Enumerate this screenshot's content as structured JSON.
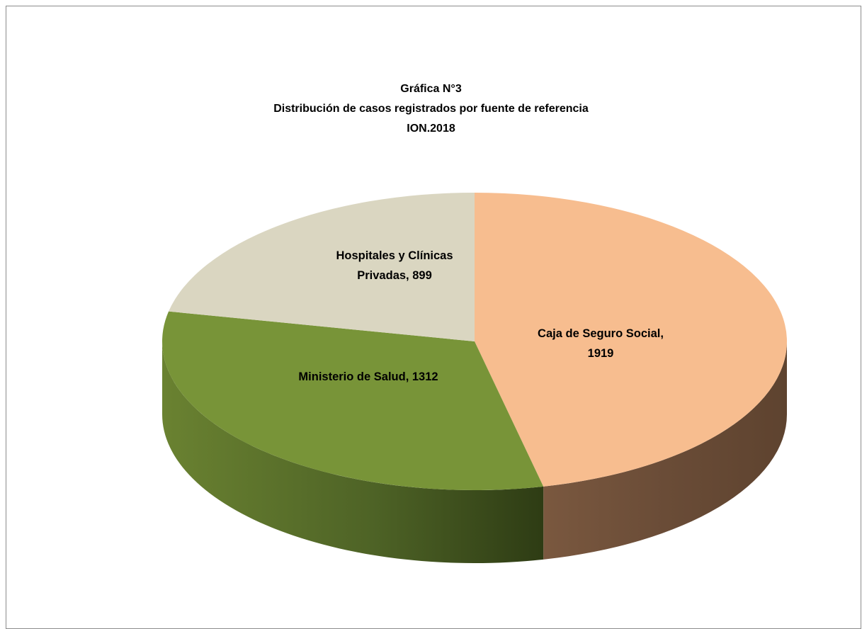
{
  "chart_data": {
    "type": "pie",
    "title_lines": [
      "Gráfica N°3",
      "Distribución de casos registrados por fuente de referencia",
      "ION.2018"
    ],
    "slices": [
      {
        "label": "Caja de Seguro Social",
        "value": 1919,
        "color": "#f7bd8f",
        "side_color": "#6b4c37",
        "label_lines": [
          "Caja de Seguro Social,",
          "1919"
        ]
      },
      {
        "label": "Ministerio de Salud",
        "value": 1312,
        "color": "#789438",
        "side_color": "#4d6123",
        "label_lines": [
          "Ministerio de Salud, 1312"
        ]
      },
      {
        "label": "Hospitales y Clínicas Privadas",
        "value": 899,
        "color": "#dad6c1",
        "side_color": "#8f8c7b",
        "label_lines": [
          "Hospitales y Clínicas",
          "Privadas, 899"
        ]
      }
    ],
    "three_d": true,
    "legend": "none"
  }
}
